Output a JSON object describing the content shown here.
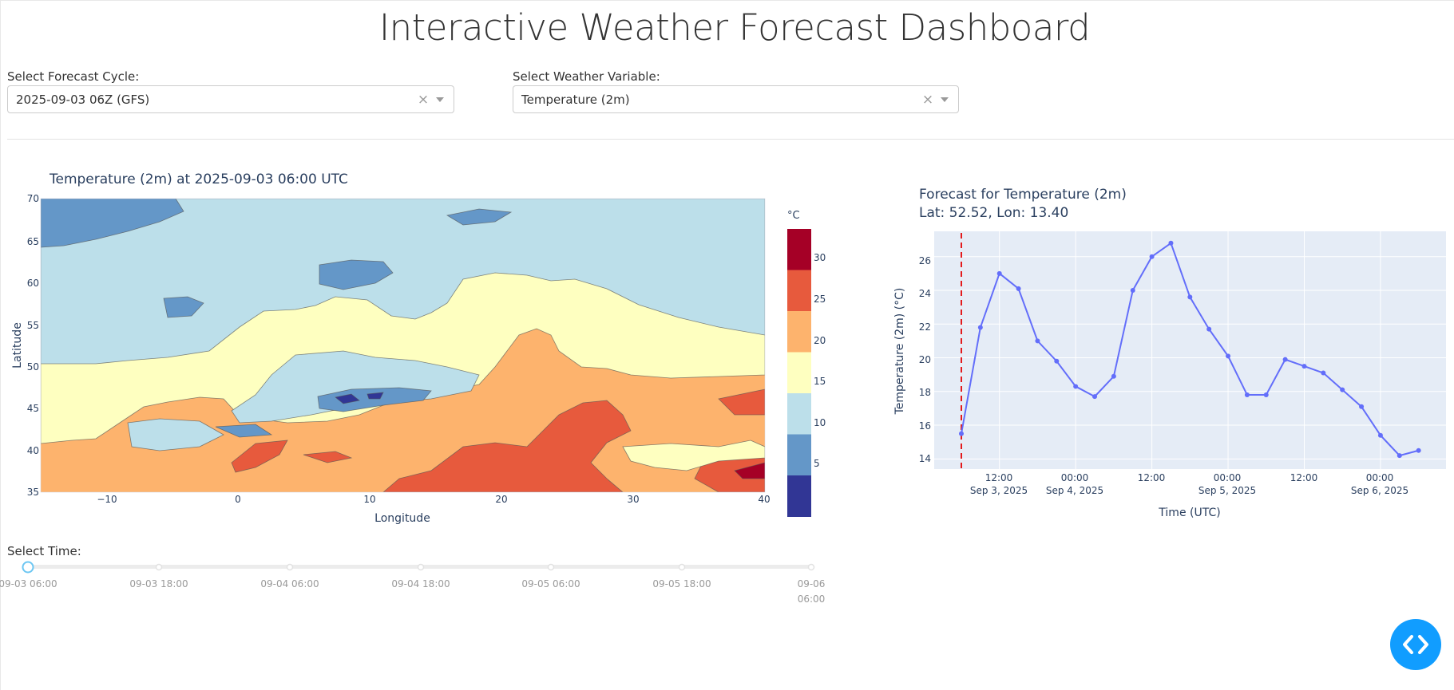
{
  "page": {
    "title": "Interactive Weather Forecast Dashboard"
  },
  "controls": {
    "cycle_label": "Select Forecast Cycle:",
    "cycle_value": "2025-09-03 06Z (GFS)",
    "variable_label": "Select Weather Variable:",
    "variable_value": "Temperature (2m)",
    "clear_glyph": "×",
    "time_label": "Select Time:"
  },
  "map": {
    "title": "Temperature (2m) at 2025-09-03 06:00 UTC",
    "xlabel": "Longitude",
    "ylabel": "Latitude",
    "x_ticks": [
      "−10",
      "0",
      "10",
      "20",
      "30",
      "40"
    ],
    "y_ticks": [
      "70",
      "65",
      "60",
      "55",
      "50",
      "45",
      "40",
      "35"
    ],
    "colorbar": {
      "title": "°C",
      "ticks": [
        "30",
        "25",
        "20",
        "15",
        "10",
        "5"
      ],
      "colors": [
        "#a50026",
        "#e75a3d",
        "#fdb36d",
        "#feffc0",
        "#bcdfea",
        "#6497c8",
        "#313695"
      ]
    }
  },
  "timeseries": {
    "title_line1": "Forecast for Temperature (2m)",
    "title_line2": "Lat: 52.52, Lon: 13.40",
    "xlabel": "Time (UTC)",
    "ylabel": "Temperature (2m) (°C)",
    "y_ticks": [
      "26",
      "24",
      "22",
      "20",
      "18",
      "16",
      "14"
    ],
    "x_tick_times": [
      "12:00",
      "00:00",
      "12:00",
      "00:00",
      "12:00",
      "00:00"
    ],
    "x_tick_dates": [
      "Sep 3, 2025",
      "Sep 4, 2025",
      "",
      "Sep 5, 2025",
      "",
      "Sep 6, 2025"
    ],
    "line_color": "#636efa",
    "marker_color": "#e31a1c"
  },
  "chart_data": {
    "type": "line",
    "title": "Forecast for Temperature (2m)",
    "subtitle": "Lat: 52.52, Lon: 13.40",
    "xlabel": "Time (UTC)",
    "ylabel": "Temperature (2m) (°C)",
    "x": [
      "2025-09-03 06:00",
      "2025-09-03 09:00",
      "2025-09-03 12:00",
      "2025-09-03 15:00",
      "2025-09-03 18:00",
      "2025-09-03 21:00",
      "2025-09-04 00:00",
      "2025-09-04 03:00",
      "2025-09-04 06:00",
      "2025-09-04 09:00",
      "2025-09-04 12:00",
      "2025-09-04 15:00",
      "2025-09-04 18:00",
      "2025-09-04 21:00",
      "2025-09-05 00:00",
      "2025-09-05 03:00",
      "2025-09-05 06:00",
      "2025-09-05 09:00",
      "2025-09-05 12:00",
      "2025-09-05 15:00",
      "2025-09-05 18:00",
      "2025-09-05 21:00",
      "2025-09-06 00:00",
      "2025-09-06 03:00",
      "2025-09-06 06:00"
    ],
    "values": [
      15.5,
      21.8,
      25.0,
      24.1,
      21.0,
      19.8,
      18.3,
      17.7,
      18.9,
      24.0,
      26.0,
      26.8,
      23.6,
      21.7,
      20.1,
      17.8,
      17.8,
      19.9,
      19.5,
      19.1,
      18.1,
      17.1,
      15.4,
      14.2,
      14.5
    ],
    "ylim": [
      13.4,
      27.5
    ],
    "vline": "2025-09-03 06:00",
    "grid": true
  },
  "slider": {
    "ticks": [
      "09-03 06:00",
      "09-03 18:00",
      "09-04 06:00",
      "09-04 18:00",
      "09-05 06:00",
      "09-05 18:00",
      "09-06"
    ],
    "last_tick_line2": "06:00",
    "selected_index": 0
  }
}
